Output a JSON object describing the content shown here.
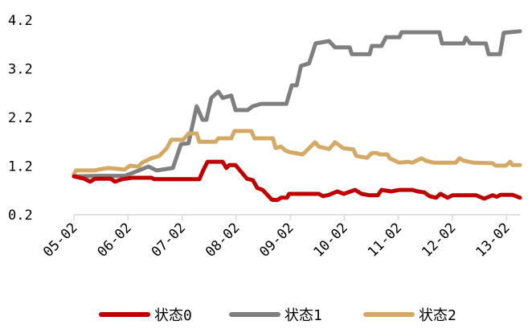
{
  "chart_data": {
    "type": "line",
    "title": "",
    "xlabel": "",
    "ylabel": "",
    "x_unit": "months since 05-02",
    "xlim": [
      0,
      8.25
    ],
    "ylim": [
      0.2,
      4.2
    ],
    "yticks": [
      "0.2",
      "1.2",
      "2.2",
      "3.2",
      "4.2"
    ],
    "ytick_values": [
      0.2,
      1.2,
      2.2,
      3.2,
      4.2
    ],
    "xticks": [
      "05-02",
      "06-02",
      "07-02",
      "08-02",
      "09-02",
      "10-02",
      "11-02",
      "12-02",
      "13-02"
    ],
    "xtick_values": [
      0,
      1,
      2,
      3,
      4,
      5,
      6,
      7,
      8
    ],
    "grid": false,
    "legend_position": "bottom",
    "series": [
      {
        "name": "状态0",
        "color": "#c00000",
        "x": [
          0,
          0.19,
          0.3,
          0.39,
          0.68,
          0.76,
          0.89,
          1.08,
          1.43,
          1.49,
          2.32,
          2.39,
          2.47,
          2.75,
          2.82,
          2.87,
          2.99,
          3.2,
          3.31,
          3.39,
          3.49,
          3.66,
          3.76,
          3.83,
          3.94,
          3.98,
          4.53,
          4.61,
          4.72,
          4.87,
          4.99,
          5.2,
          5.32,
          5.47,
          5.62,
          5.69,
          5.87,
          6.02,
          6.26,
          6.36,
          6.48,
          6.58,
          6.7,
          6.78,
          6.91,
          7.0,
          7.44,
          7.59,
          7.74,
          7.82,
          7.89,
          8.11,
          8.25
        ],
        "y": [
          0.99,
          0.94,
          0.88,
          0.94,
          0.94,
          0.88,
          0.93,
          0.96,
          0.96,
          0.93,
          0.93,
          1.11,
          1.29,
          1.29,
          1.16,
          1.22,
          1.22,
          0.94,
          0.91,
          0.75,
          0.71,
          0.51,
          0.5,
          0.55,
          0.55,
          0.63,
          0.63,
          0.58,
          0.61,
          0.68,
          0.63,
          0.71,
          0.63,
          0.6,
          0.6,
          0.71,
          0.68,
          0.71,
          0.71,
          0.68,
          0.66,
          0.58,
          0.55,
          0.63,
          0.55,
          0.6,
          0.6,
          0.53,
          0.6,
          0.57,
          0.61,
          0.61,
          0.55
        ]
      },
      {
        "name": "状态1",
        "color": "#7f7f7f",
        "x": [
          0,
          0.45,
          0.94,
          1.13,
          1.38,
          1.53,
          1.83,
          1.98,
          2.12,
          2.27,
          2.38,
          2.45,
          2.54,
          2.67,
          2.75,
          2.91,
          2.99,
          3.21,
          3.31,
          3.46,
          3.93,
          4.03,
          4.12,
          4.2,
          4.35,
          4.47,
          4.72,
          4.83,
          5.1,
          5.14,
          5.47,
          5.51,
          5.69,
          5.77,
          6.02,
          6.06,
          6.76,
          6.81,
          7.21,
          7.25,
          7.33,
          7.62,
          7.67,
          7.88,
          7.95,
          8.25
        ],
        "y": [
          0.99,
          1.0,
          1.0,
          1.08,
          1.19,
          1.11,
          1.16,
          1.65,
          1.67,
          2.43,
          2.15,
          2.15,
          2.6,
          2.73,
          2.6,
          2.65,
          2.35,
          2.35,
          2.43,
          2.48,
          2.48,
          2.86,
          2.86,
          3.26,
          3.31,
          3.72,
          3.77,
          3.64,
          3.64,
          3.5,
          3.5,
          3.67,
          3.67,
          3.85,
          3.85,
          3.95,
          3.95,
          3.72,
          3.72,
          3.84,
          3.72,
          3.72,
          3.5,
          3.5,
          3.94,
          3.97
        ]
      },
      {
        "name": "状态2",
        "color": "#d4a965",
        "x": [
          0,
          0.04,
          0.39,
          0.46,
          0.64,
          0.94,
          1.04,
          1.19,
          1.26,
          1.43,
          1.58,
          1.72,
          1.8,
          2.02,
          2.12,
          2.27,
          2.32,
          2.62,
          2.67,
          2.91,
          2.97,
          3.28,
          3.34,
          3.68,
          3.73,
          3.83,
          3.91,
          3.98,
          4.23,
          4.46,
          4.53,
          4.72,
          4.83,
          4.98,
          5.17,
          5.22,
          5.42,
          5.51,
          5.59,
          5.66,
          5.8,
          5.84,
          6.02,
          6.17,
          6.26,
          6.43,
          6.51,
          6.66,
          7.06,
          7.13,
          7.21,
          7.4,
          7.74,
          7.8,
          7.99,
          8.07,
          8.11,
          8.25
        ],
        "y": [
          1.04,
          1.11,
          1.11,
          1.13,
          1.16,
          1.13,
          1.21,
          1.19,
          1.27,
          1.36,
          1.41,
          1.57,
          1.74,
          1.74,
          1.87,
          1.87,
          1.7,
          1.7,
          1.77,
          1.77,
          1.92,
          1.92,
          1.77,
          1.77,
          1.57,
          1.6,
          1.52,
          1.49,
          1.44,
          1.69,
          1.6,
          1.55,
          1.69,
          1.57,
          1.54,
          1.41,
          1.37,
          1.47,
          1.47,
          1.44,
          1.44,
          1.36,
          1.27,
          1.29,
          1.27,
          1.36,
          1.31,
          1.27,
          1.27,
          1.36,
          1.31,
          1.27,
          1.26,
          1.21,
          1.21,
          1.29,
          1.22,
          1.22
        ]
      }
    ]
  }
}
